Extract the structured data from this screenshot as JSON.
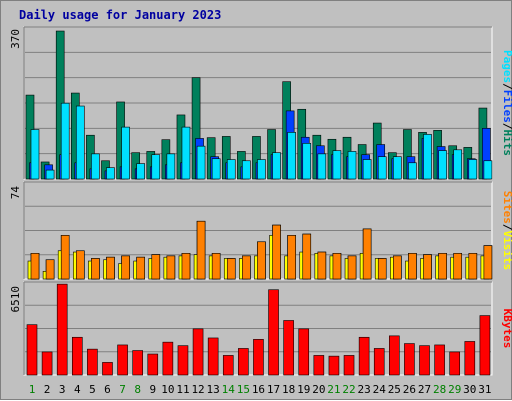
{
  "title": "Daily usage for January 2023",
  "colors": {
    "hits": "#00805c",
    "files": "#0040ff",
    "pages": "#00e0ff",
    "visits": "#ff8000",
    "sites": "#ffff00",
    "kbytes": "#ff0000",
    "title": "#0000a0",
    "weekday_label": "#008000",
    "weekend_label": "#008000",
    "panel_bg": "#c0c0c0",
    "grid": "#808080"
  },
  "chart_data": [
    {
      "type": "bar",
      "panel": "hits-files-pages",
      "ymax_label": "370",
      "ymax": 370,
      "legend": [
        "Pages",
        "/",
        "Files",
        "/",
        "Hits"
      ],
      "categories": [
        "1",
        "2",
        "3",
        "4",
        "5",
        "6",
        "7",
        "8",
        "9",
        "10",
        "11",
        "12",
        "13",
        "14",
        "15",
        "16",
        "17",
        "18",
        "19",
        "20",
        "21",
        "22",
        "23",
        "24",
        "25",
        "26",
        "27",
        "28",
        "29",
        "30",
        "31"
      ],
      "series": [
        {
          "name": "Hits",
          "values": [
            207,
            42,
            365,
            212,
            108,
            45,
            190,
            65,
            68,
            97,
            158,
            250,
            102,
            105,
            68,
            105,
            122,
            240,
            172,
            108,
            98,
            103,
            85,
            138,
            65,
            122,
            115,
            120,
            82,
            78,
            175
          ]
        },
        {
          "name": "Files",
          "values": [
            40,
            35,
            60,
            40,
            25,
            20,
            30,
            25,
            30,
            35,
            40,
            100,
            55,
            40,
            30,
            40,
            60,
            168,
            103,
            82,
            60,
            55,
            60,
            85,
            50,
            55,
            100,
            80,
            60,
            50,
            125
          ]
        },
        {
          "name": "Pages",
          "values": [
            122,
            22,
            187,
            180,
            62,
            28,
            128,
            38,
            60,
            62,
            128,
            81,
            50,
            48,
            45,
            48,
            65,
            115,
            88,
            62,
            70,
            68,
            48,
            55,
            55,
            40,
            110,
            70,
            72,
            48,
            45
          ]
        }
      ]
    },
    {
      "type": "bar",
      "panel": "visits-sites",
      "ymax_label": "74",
      "ymax": 74,
      "legend": [
        "Sites",
        "/",
        "Visits"
      ],
      "categories": [
        "1",
        "2",
        "3",
        "4",
        "5",
        "6",
        "7",
        "8",
        "9",
        "10",
        "11",
        "12",
        "13",
        "14",
        "15",
        "16",
        "17",
        "18",
        "19",
        "20",
        "21",
        "22",
        "23",
        "24",
        "25",
        "26",
        "27",
        "28",
        "29",
        "30",
        "31"
      ],
      "series": [
        {
          "name": "Visits",
          "values": [
            20,
            15,
            34,
            22,
            16,
            17,
            18,
            17,
            19,
            18,
            20,
            45,
            20,
            16,
            18,
            29,
            42,
            34,
            35,
            21,
            20,
            18,
            39,
            16,
            18,
            20,
            19,
            20,
            20,
            20,
            26
          ]
        },
        {
          "name": "Sites",
          "values": [
            14,
            6,
            22,
            21,
            14,
            15,
            12,
            14,
            16,
            17,
            18,
            19,
            18,
            16,
            16,
            18,
            34,
            18,
            21,
            20,
            18,
            16,
            20,
            16,
            17,
            14,
            16,
            18,
            17,
            17,
            18
          ]
        }
      ]
    },
    {
      "type": "bar",
      "panel": "kbytes",
      "ymax_label": "6510",
      "ymax": 6510,
      "legend": [
        "KBytes"
      ],
      "categories": [
        "1",
        "2",
        "3",
        "4",
        "5",
        "6",
        "7",
        "8",
        "9",
        "10",
        "11",
        "12",
        "13",
        "14",
        "15",
        "16",
        "17",
        "18",
        "19",
        "20",
        "21",
        "22",
        "23",
        "24",
        "25",
        "26",
        "27",
        "28",
        "29",
        "30",
        "31"
      ],
      "series": [
        {
          "name": "KBytes",
          "values": [
            3600,
            1650,
            6500,
            2700,
            1850,
            900,
            2150,
            1750,
            1500,
            2350,
            2100,
            3300,
            2650,
            1400,
            1900,
            2550,
            6100,
            3900,
            3300,
            1400,
            1350,
            1400,
            2700,
            1900,
            2800,
            2250,
            2100,
            2150,
            1650,
            2400,
            4250
          ]
        }
      ]
    }
  ]
}
